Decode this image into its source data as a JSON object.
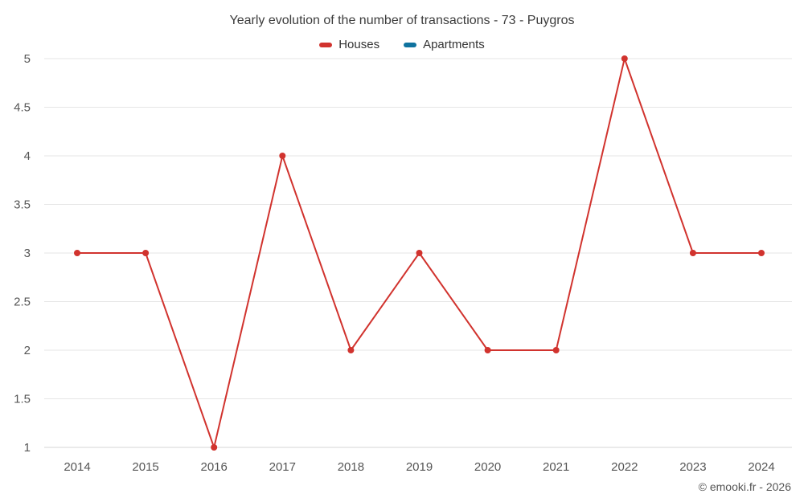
{
  "title": "Yearly evolution of the number of transactions - 73 - Puygros",
  "footer": "© emooki.fr - 2026",
  "colors": {
    "houses": "#d1332e",
    "apartments": "#0f739f",
    "grid": "#e6e6e6",
    "axis": "#d4d4d4",
    "tick_text": "#555555",
    "title_text": "#3c3c3c"
  },
  "chart_data": {
    "type": "line",
    "title": "Yearly evolution of the number of transactions - 73 - Puygros",
    "categories": [
      "2014",
      "2015",
      "2016",
      "2017",
      "2018",
      "2019",
      "2020",
      "2021",
      "2022",
      "2023",
      "2024"
    ],
    "series": [
      {
        "name": "Houses",
        "color": "#d1332e",
        "values": [
          3,
          3,
          1,
          4,
          2,
          3,
          2,
          2,
          5,
          3,
          3
        ]
      },
      {
        "name": "Apartments",
        "color": "#0f739f",
        "values": []
      }
    ],
    "xlabel": "",
    "ylabel": "",
    "ylim": [
      1,
      5
    ],
    "ytick_step": 0.5,
    "yticks": [
      1,
      1.5,
      2,
      2.5,
      3,
      3.5,
      4,
      4.5,
      5
    ],
    "grid": true,
    "legend_position": "top"
  }
}
